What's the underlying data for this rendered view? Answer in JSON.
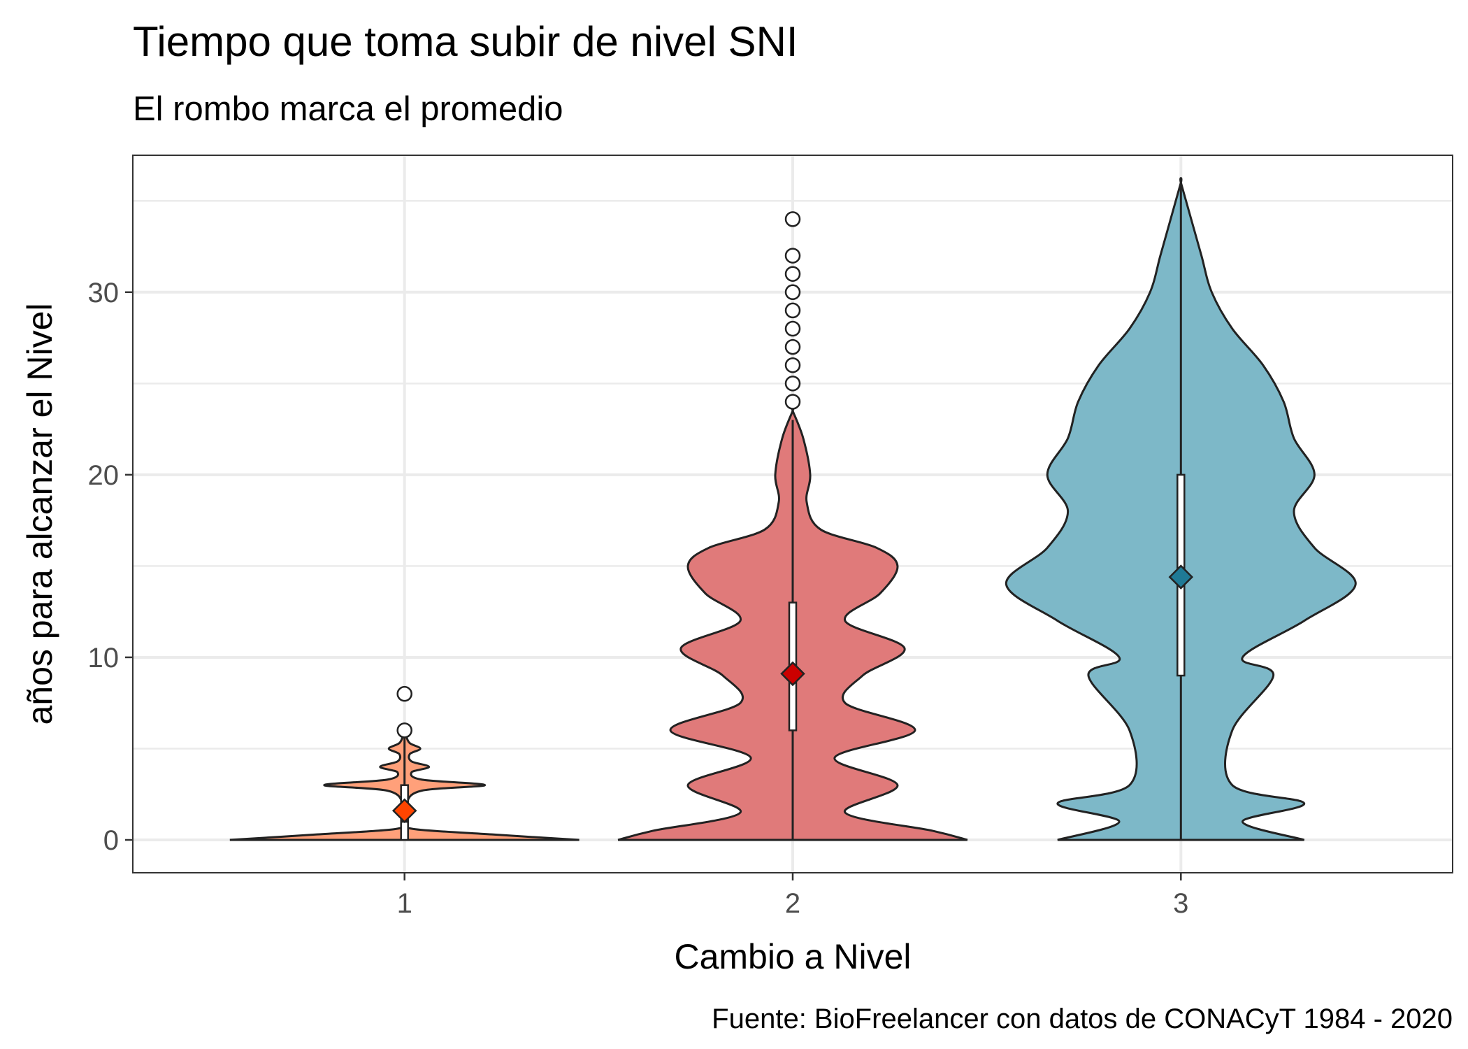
{
  "chart_data": {
    "type": "violin",
    "title": "Tiempo que toma subir de nivel SNI",
    "subtitle": "El rombo marca el promedio",
    "xlabel": "Cambio a Nivel",
    "ylabel": "años para alcanzar el Nivel",
    "caption": "Fuente: BioFreelancer con datos de CONACyT 1984 - 2020",
    "categories": [
      "1",
      "2",
      "3"
    ],
    "ylim": [
      -1.8,
      37.5
    ],
    "yticks": [
      0,
      10,
      20,
      30
    ],
    "ytick_labels": [
      "0",
      "10",
      "20",
      "30"
    ],
    "grid": true,
    "legend": "none",
    "groups": [
      {
        "category": "1",
        "fill_color": "#FFA07A",
        "mean_color": "#FF4500",
        "box": {
          "q1": 0,
          "median": 1,
          "q3": 3,
          "whisker_low": 0,
          "whisker_high": 6
        },
        "outliers": [
          6,
          8
        ],
        "mean": 1.6,
        "density": [
          [
            0,
            1.0
          ],
          [
            0.3,
            0.5
          ],
          [
            0.6,
            0.05
          ],
          [
            1.0,
            0.01
          ],
          [
            2.0,
            0.01
          ],
          [
            2.7,
            0.1
          ],
          [
            3.0,
            0.46
          ],
          [
            3.3,
            0.1
          ],
          [
            3.7,
            0.04
          ],
          [
            4.0,
            0.14
          ],
          [
            4.3,
            0.04
          ],
          [
            4.7,
            0.03
          ],
          [
            5.0,
            0.09
          ],
          [
            5.3,
            0.03
          ],
          [
            5.7,
            0.01
          ],
          [
            6.0,
            0.015
          ],
          [
            6.3,
            0.005
          ]
        ]
      },
      {
        "category": "2",
        "fill_color": "#E07A7A",
        "mean_color": "#CC0000",
        "box": {
          "q1": 6,
          "median": 9,
          "q3": 13,
          "whisker_low": 0,
          "whisker_high": 23
        },
        "outliers": [
          24,
          25,
          26,
          27,
          28,
          29,
          30,
          31,
          32,
          34
        ],
        "mean": 9.1,
        "density": [
          [
            0,
            0.05
          ],
          [
            0.5,
            0.04
          ],
          [
            1.5,
            0.015
          ],
          [
            3.0,
            0.03
          ],
          [
            4.5,
            0.012
          ],
          [
            6.0,
            0.035
          ],
          [
            7.5,
            0.015
          ],
          [
            9.0,
            0.02
          ],
          [
            10.5,
            0.032
          ],
          [
            12.0,
            0.015
          ],
          [
            13.5,
            0.025
          ],
          [
            15.0,
            0.03
          ],
          [
            16.0,
            0.024
          ],
          [
            17.0,
            0.008
          ],
          [
            18.5,
            0.004
          ],
          [
            20.0,
            0.005
          ],
          [
            22.0,
            0.003
          ],
          [
            23.5,
            0.0
          ]
        ]
      },
      {
        "category": "3",
        "fill_color": "#7DB8C8",
        "mean_color": "#1F7A96",
        "box": {
          "q1": 9,
          "median": 14,
          "q3": 20,
          "whisker_low": 0,
          "whisker_high": 36
        },
        "outliers": [],
        "mean": 14.4,
        "density": [
          [
            0,
            0.012
          ],
          [
            1.0,
            0.006
          ],
          [
            2.0,
            0.012
          ],
          [
            3.0,
            0.005
          ],
          [
            6.0,
            0.005
          ],
          [
            9.0,
            0.009
          ],
          [
            10.0,
            0.006
          ],
          [
            12.0,
            0.012
          ],
          [
            14.0,
            0.017
          ],
          [
            16.0,
            0.013
          ],
          [
            18.0,
            0.011
          ],
          [
            20.0,
            0.013
          ],
          [
            22.0,
            0.011
          ],
          [
            24.0,
            0.01
          ],
          [
            26.0,
            0.008
          ],
          [
            28.0,
            0.005
          ],
          [
            30.0,
            0.003
          ],
          [
            32.0,
            0.002
          ],
          [
            34.0,
            0.001
          ],
          [
            36.0,
            0.0
          ]
        ]
      }
    ]
  }
}
